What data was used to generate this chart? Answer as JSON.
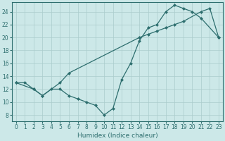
{
  "xlabel": "Humidex (Indice chaleur)",
  "bg_color": "#cce8e8",
  "line_color": "#2d6e6e",
  "grid_color": "#aacccc",
  "xlim": [
    -0.5,
    23.5
  ],
  "ylim": [
    7,
    25.5
  ],
  "xticks": [
    0,
    1,
    2,
    3,
    4,
    5,
    6,
    7,
    8,
    9,
    10,
    11,
    12,
    13,
    14,
    15,
    16,
    17,
    18,
    19,
    20,
    21,
    22,
    23
  ],
  "yticks": [
    8,
    10,
    12,
    14,
    16,
    18,
    20,
    22,
    24
  ],
  "curve1_x": [
    0,
    1,
    2,
    3,
    4,
    5,
    6,
    7,
    8,
    9,
    10,
    11,
    12,
    13,
    14,
    15,
    16,
    17,
    18,
    19,
    20,
    21,
    23
  ],
  "curve1_y": [
    13,
    13,
    12,
    11,
    12,
    12,
    11,
    10.5,
    10,
    9.5,
    8,
    9,
    13.5,
    16,
    19.5,
    21.5,
    22,
    24,
    25,
    24.5,
    24,
    23,
    20
  ],
  "curve2_x": [
    0,
    2,
    3,
    5,
    6,
    14,
    15,
    16,
    17,
    18,
    19,
    21,
    22,
    23
  ],
  "curve2_y": [
    13,
    12,
    11,
    13,
    14.5,
    20,
    20.5,
    21,
    21.5,
    22,
    22.5,
    24,
    24.5,
    20
  ]
}
